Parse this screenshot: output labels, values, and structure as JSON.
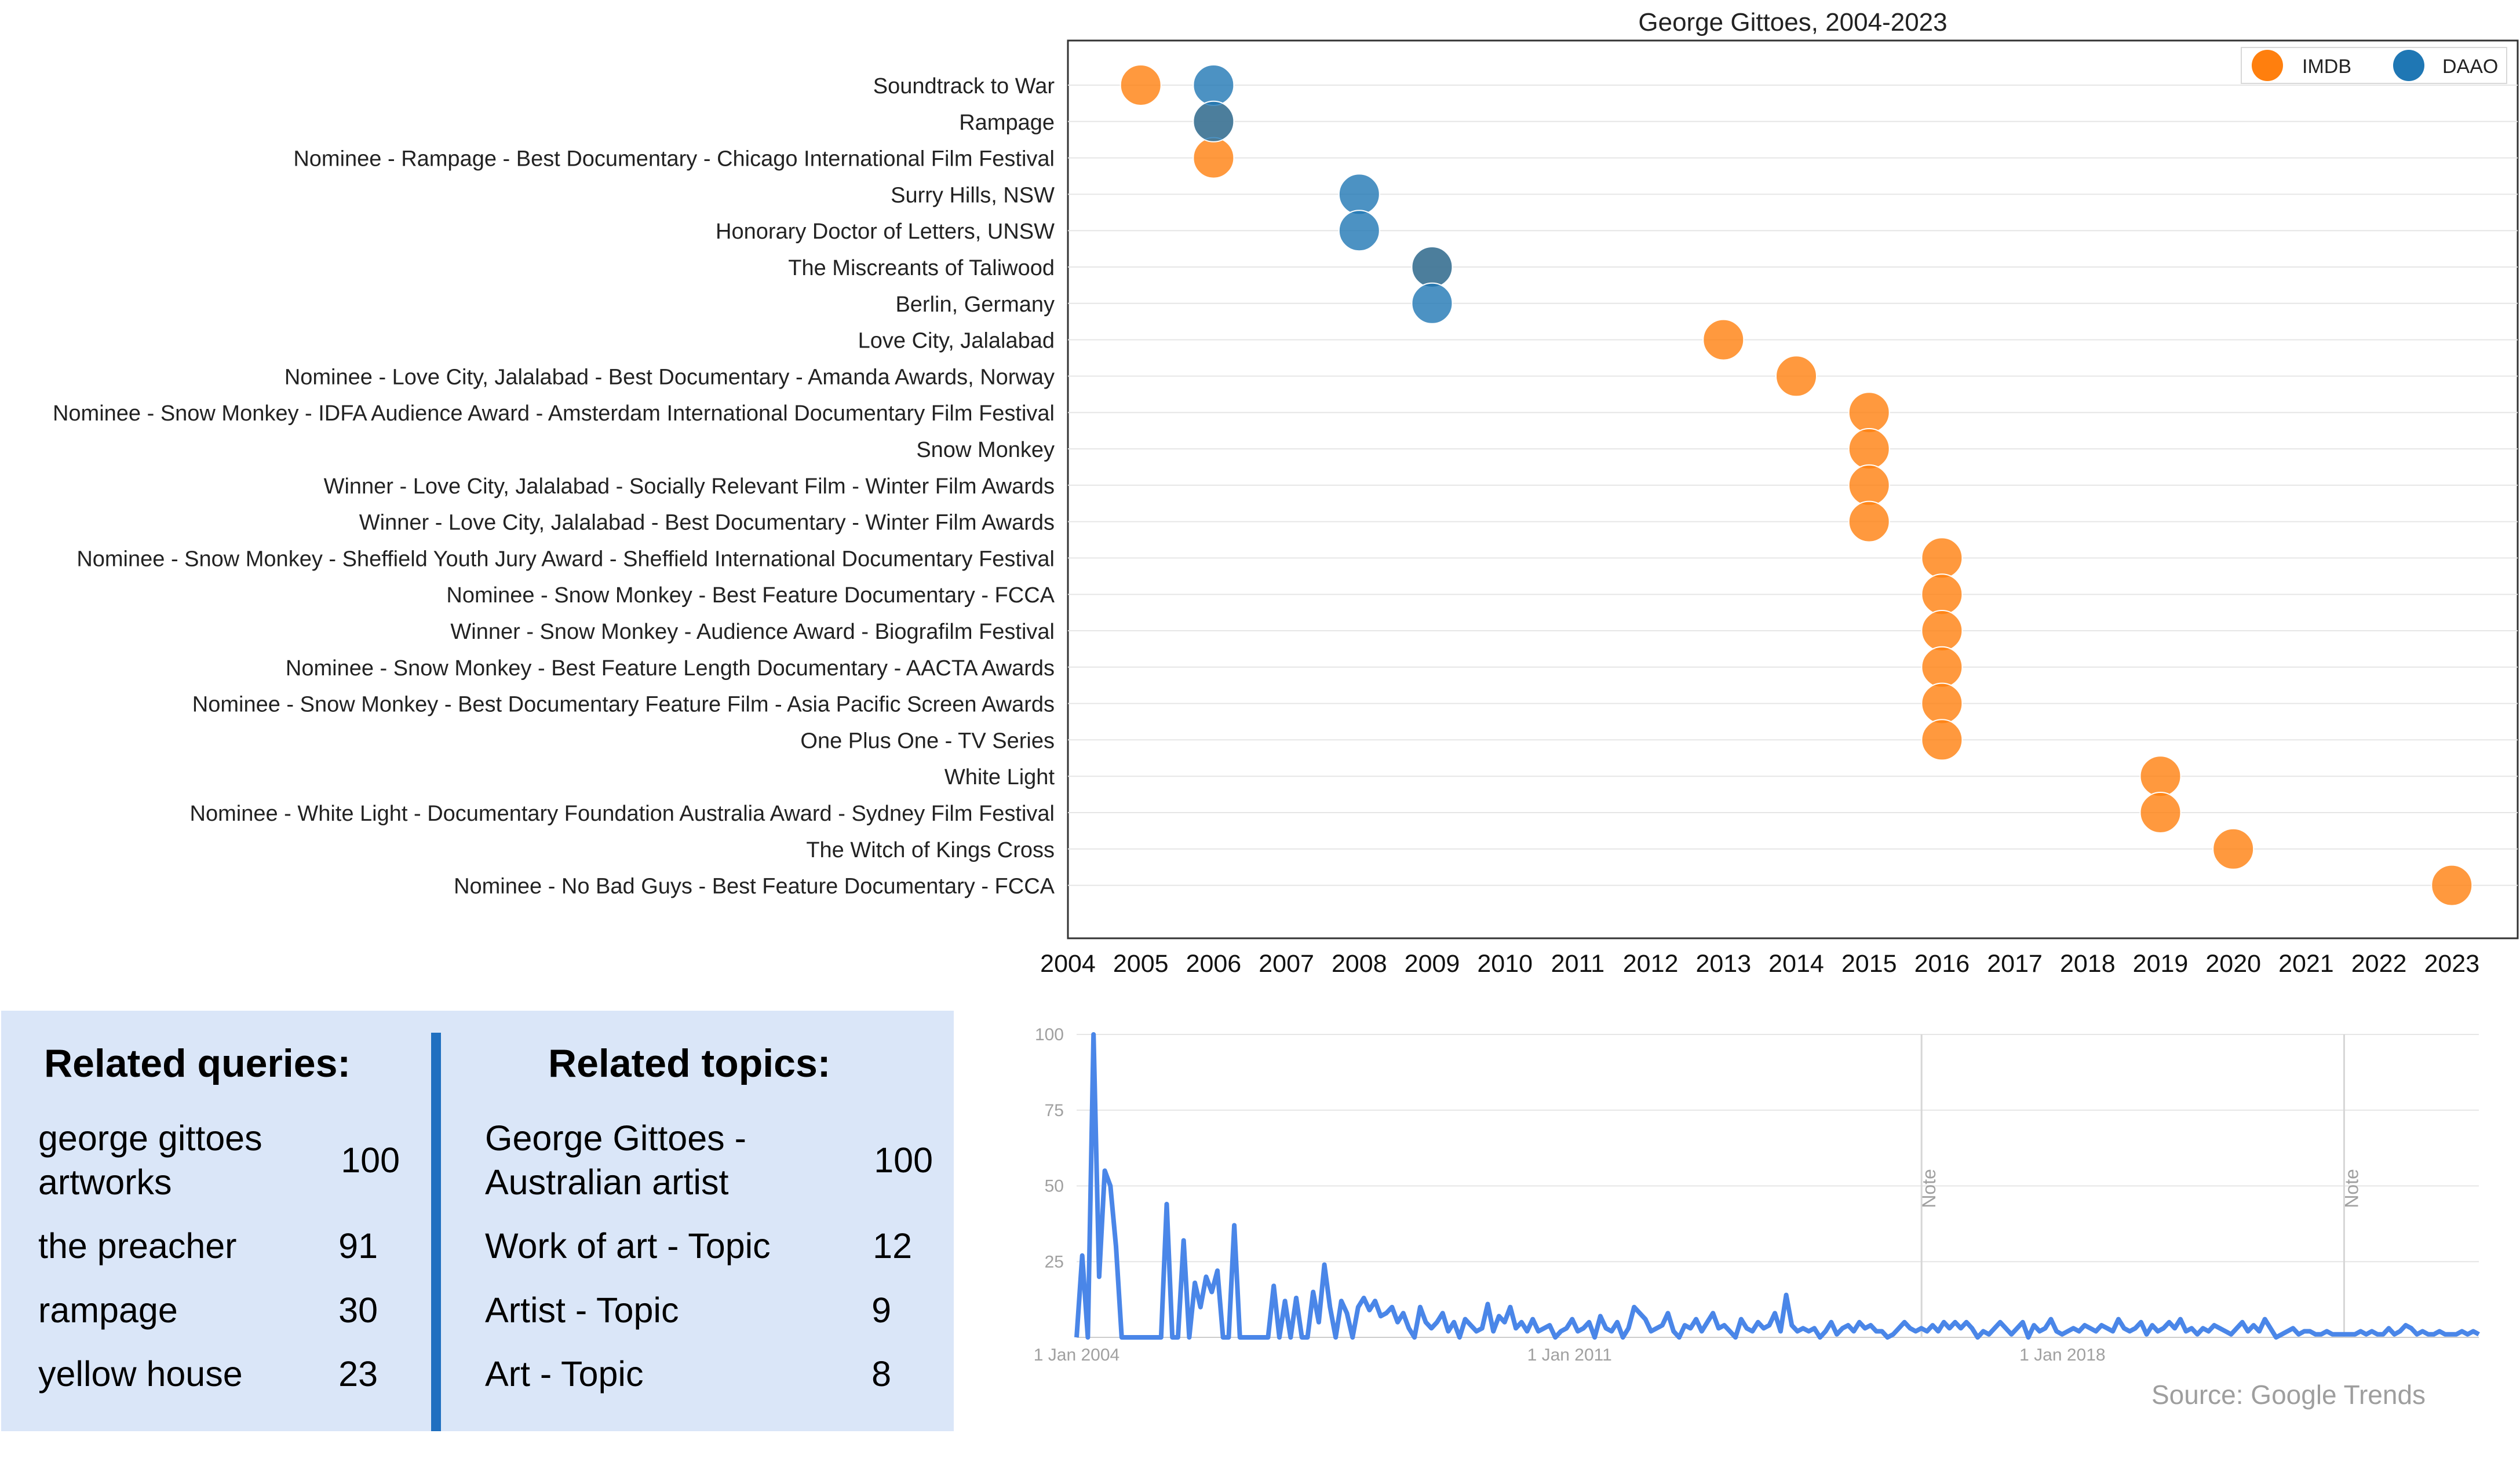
{
  "timeline": {
    "title": "George Gittoes, 2004-2023",
    "legend": [
      {
        "label": "IMDB",
        "color": "#ff7f0e"
      },
      {
        "label": "DAAO",
        "color": "#1f77b4"
      }
    ]
  },
  "chart_data": [
    {
      "type": "scatter",
      "title": "George Gittoes, 2004-2023",
      "xlim": [
        2004,
        2023
      ],
      "x_ticks": [
        2004,
        2005,
        2006,
        2007,
        2008,
        2009,
        2010,
        2011,
        2012,
        2013,
        2014,
        2015,
        2016,
        2017,
        2018,
        2019,
        2020,
        2021,
        2022,
        2023
      ],
      "legend_position": "top-right",
      "grid": "horizontal",
      "categories": [
        "Soundtrack to War",
        "Rampage",
        "Nominee - Rampage - Best Documentary - Chicago International Film Festival",
        "Surry Hills, NSW",
        "Honorary Doctor of Letters, UNSW",
        "The Miscreants of Taliwood",
        "Berlin, Germany",
        "Love City, Jalalabad",
        "Nominee - Love City, Jalalabad - Best Documentary - Amanda Awards, Norway",
        "Nominee - Snow Monkey - IDFA Audience Award - Amsterdam International Documentary Film Festival",
        "Snow Monkey",
        "Winner - Love City, Jalalabad - Socially Relevant Film - Winter Film Awards",
        "Winner - Love City, Jalalabad - Best Documentary - Winter Film Awards",
        "Nominee - Snow Monkey - Sheffield Youth Jury Award - Sheffield International Documentary Festival",
        "Nominee - Snow Monkey - Best Feature Documentary - FCCA",
        "Winner - Snow Monkey - Audience Award - Biografilm Festival",
        "Nominee - Snow Monkey - Best Feature Length Documentary - AACTA Awards",
        "Nominee - Snow Monkey - Best Documentary Feature Film - Asia Pacific Screen Awards",
        "One Plus One - TV Series",
        "White Light",
        "Nominee - White Light - Documentary Foundation Australia Award - Sydney Film Festival",
        "The Witch of Kings Cross",
        "Nominee - No Bad Guys - Best Feature Documentary - FCCA"
      ],
      "series": [
        {
          "name": "IMDB",
          "color": "#ff7f0e",
          "points": [
            {
              "category": "Soundtrack to War",
              "x": 2005
            },
            {
              "category": "Rampage",
              "x": 2006
            },
            {
              "category": "Nominee - Rampage - Best Documentary - Chicago International Film Festival",
              "x": 2006
            },
            {
              "category": "The Miscreants of Taliwood",
              "x": 2009
            },
            {
              "category": "Love City, Jalalabad",
              "x": 2013
            },
            {
              "category": "Nominee - Love City, Jalalabad - Best Documentary - Amanda Awards, Norway",
              "x": 2014
            },
            {
              "category": "Nominee - Snow Monkey - IDFA Audience Award - Amsterdam International Documentary Film Festival",
              "x": 2015
            },
            {
              "category": "Snow Monkey",
              "x": 2015
            },
            {
              "category": "Winner - Love City, Jalalabad - Socially Relevant Film - Winter Film Awards",
              "x": 2015
            },
            {
              "category": "Winner - Love City, Jalalabad - Best Documentary - Winter Film Awards",
              "x": 2015
            },
            {
              "category": "Nominee - Snow Monkey - Sheffield Youth Jury Award - Sheffield International Documentary Festival",
              "x": 2016
            },
            {
              "category": "Nominee - Snow Monkey - Best Feature Documentary - FCCA",
              "x": 2016
            },
            {
              "category": "Winner - Snow Monkey - Audience Award - Biografilm Festival",
              "x": 2016
            },
            {
              "category": "Nominee - Snow Monkey - Best Feature Length Documentary - AACTA Awards",
              "x": 2016
            },
            {
              "category": "Nominee - Snow Monkey - Best Documentary Feature Film - Asia Pacific Screen Awards",
              "x": 2016
            },
            {
              "category": "One Plus One - TV Series",
              "x": 2016
            },
            {
              "category": "White Light",
              "x": 2019
            },
            {
              "category": "Nominee - White Light - Documentary Foundation Australia Award - Sydney Film Festival",
              "x": 2019
            },
            {
              "category": "The Witch of Kings Cross",
              "x": 2020
            },
            {
              "category": "Nominee - No Bad Guys - Best Feature Documentary - FCCA",
              "x": 2023
            }
          ]
        },
        {
          "name": "DAAO",
          "color": "#1f77b4",
          "points": [
            {
              "category": "Soundtrack to War",
              "x": 2006
            },
            {
              "category": "Rampage",
              "x": 2006
            },
            {
              "category": "Surry Hills, NSW",
              "x": 2008
            },
            {
              "category": "Honorary Doctor of Letters, UNSW",
              "x": 2008
            },
            {
              "category": "The Miscreants of Taliwood",
              "x": 2009
            },
            {
              "category": "Berlin, Germany",
              "x": 2009
            }
          ]
        }
      ]
    },
    {
      "type": "line",
      "ylim": [
        0,
        100
      ],
      "y_ticks": [
        100,
        75,
        50,
        25
      ],
      "x_range": [
        "2004-01-01",
        "2023-12-01"
      ],
      "x_tick_labels": [
        "1 Jan 2004",
        "1 Jan 2011",
        "1 Jan 2018"
      ],
      "x_tick_dates": [
        "2004-01-01",
        "2011-01-01",
        "2018-01-01"
      ],
      "note_markers": [
        {
          "date": "2016-01-01",
          "label": "Note"
        },
        {
          "date": "2022-01-01",
          "label": "Note"
        }
      ],
      "color": "#4a86e8",
      "grid": "horizontal",
      "series": [
        {
          "values": [
            0,
            27,
            0,
            100,
            20,
            55,
            50,
            30,
            0,
            0,
            0,
            0,
            0,
            0,
            0,
            0,
            44,
            0,
            0,
            32,
            0,
            18,
            10,
            20,
            15,
            22,
            0,
            0,
            37,
            0,
            0,
            0,
            0,
            0,
            0,
            17,
            0,
            12,
            0,
            13,
            0,
            0,
            15,
            5,
            24,
            10,
            0,
            12,
            8,
            0,
            10,
            13,
            9,
            12,
            7,
            8,
            10,
            5,
            8,
            3,
            0,
            10,
            5,
            3,
            5,
            8,
            2,
            5,
            0,
            6,
            4,
            2,
            3,
            11,
            2,
            7,
            5,
            10,
            3,
            5,
            2,
            6,
            2,
            3,
            4,
            0,
            2,
            3,
            6,
            2,
            3,
            5,
            0,
            7,
            3,
            2,
            5,
            0,
            3,
            10,
            8,
            6,
            2,
            3,
            4,
            8,
            2,
            0,
            4,
            3,
            6,
            2,
            5,
            8,
            3,
            4,
            2,
            0,
            6,
            3,
            2,
            5,
            3,
            4,
            8,
            2,
            14,
            4,
            2,
            3,
            2,
            3,
            0,
            2,
            5,
            1,
            3,
            4,
            2,
            5,
            3,
            4,
            2,
            2,
            0,
            1,
            3,
            5,
            3,
            2,
            3,
            2,
            4,
            2,
            5,
            3,
            5,
            3,
            5,
            3,
            0,
            2,
            1,
            3,
            5,
            3,
            1,
            3,
            5,
            0,
            4,
            2,
            3,
            6,
            2,
            1,
            2,
            3,
            2,
            4,
            3,
            2,
            4,
            3,
            2,
            6,
            3,
            2,
            3,
            5,
            1,
            4,
            2,
            3,
            5,
            3,
            6,
            2,
            3,
            1,
            3,
            2,
            4,
            3,
            2,
            1,
            3,
            5,
            2,
            4,
            2,
            6,
            3,
            0,
            1,
            2,
            3,
            1,
            2,
            2,
            1,
            1,
            2,
            1,
            1,
            1,
            1,
            1,
            2,
            1,
            2,
            1,
            1,
            3,
            1,
            2,
            4,
            3,
            1,
            2,
            1,
            1,
            2,
            1,
            1,
            1,
            2,
            1,
            2,
            1
          ]
        }
      ]
    }
  ],
  "related_queries": {
    "heading": "Related queries:",
    "items": [
      {
        "name": "george gittoes artworks",
        "value": "100"
      },
      {
        "name": "the preacher",
        "value": "91"
      },
      {
        "name": "rampage",
        "value": "30"
      },
      {
        "name": "yellow house",
        "value": "23"
      }
    ]
  },
  "related_topics": {
    "heading": "Related topics:",
    "items": [
      {
        "name": "George Gittoes - Australian artist",
        "value": "100"
      },
      {
        "name": "Work of art - Topic",
        "value": "12"
      },
      {
        "name": "Artist - Topic",
        "value": "9"
      },
      {
        "name": "Art - Topic",
        "value": "8"
      }
    ]
  },
  "trends": {
    "source": "Source: Google Trends"
  }
}
